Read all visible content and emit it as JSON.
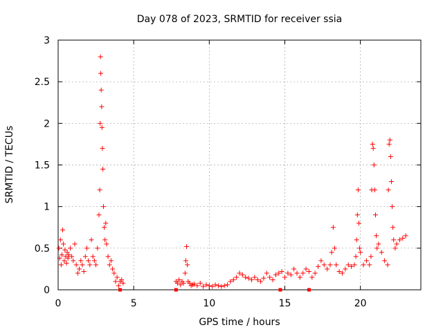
{
  "chart_data": {
    "type": "scatter",
    "title": "Day 078 of 2023, SRMTID for receiver ssia",
    "xlabel": "GPS time / hours",
    "ylabel": "SRMTID / TECUs",
    "xlim": [
      0,
      24
    ],
    "ylim": [
      0,
      3
    ],
    "xticks": [
      0,
      5,
      10,
      15,
      20
    ],
    "yticks": [
      0,
      0.5,
      1,
      1.5,
      2,
      2.5,
      3
    ],
    "ytick_labels": [
      "0",
      "0.5",
      "1",
      "1.5",
      "2",
      "2.5",
      "3"
    ],
    "grid": true,
    "marker": "+",
    "color": "#ff0000",
    "series": [
      {
        "name": "SRMTID",
        "x": [
          0.05,
          0.1,
          0.15,
          0.2,
          0.25,
          0.3,
          0.35,
          0.4,
          0.45,
          0.5,
          0.55,
          0.6,
          0.65,
          0.7,
          0.8,
          0.9,
          1.0,
          1.1,
          1.2,
          1.3,
          1.4,
          1.5,
          1.6,
          1.7,
          1.8,
          1.9,
          2.0,
          2.1,
          2.2,
          2.3,
          2.4,
          2.5,
          2.6,
          2.7,
          2.75,
          2.78,
          2.8,
          2.82,
          2.85,
          2.88,
          2.9,
          2.93,
          2.96,
          3.0,
          3.05,
          3.1,
          3.15,
          3.2,
          3.3,
          3.4,
          3.5,
          3.6,
          3.7,
          3.8,
          3.9,
          4.0,
          4.1,
          4.2,
          4.3,
          7.8,
          7.9,
          8.0,
          8.1,
          8.2,
          8.3,
          8.4,
          8.45,
          8.5,
          8.55,
          8.6,
          8.7,
          8.8,
          8.9,
          9.0,
          9.2,
          9.4,
          9.6,
          9.8,
          10.0,
          10.2,
          10.4,
          10.6,
          10.8,
          11.0,
          11.2,
          11.4,
          11.6,
          11.8,
          12.0,
          12.2,
          12.4,
          12.6,
          12.8,
          13.0,
          13.2,
          13.4,
          13.6,
          13.8,
          14.0,
          14.2,
          14.4,
          14.6,
          14.8,
          15.0,
          15.2,
          15.4,
          15.6,
          15.8,
          16.0,
          16.2,
          16.4,
          16.6,
          16.8,
          17.0,
          17.2,
          17.4,
          17.6,
          17.8,
          18.0,
          18.1,
          18.2,
          18.3,
          18.4,
          18.6,
          18.8,
          19.0,
          19.2,
          19.4,
          19.6,
          19.7,
          19.75,
          19.8,
          19.85,
          19.9,
          19.95,
          20.0,
          20.2,
          20.4,
          20.6,
          20.7,
          20.75,
          20.8,
          20.85,
          20.9,
          20.95,
          21.0,
          21.05,
          21.1,
          21.2,
          21.4,
          21.6,
          21.8,
          21.85,
          21.9,
          21.95,
          22.0,
          22.05,
          22.1,
          22.15,
          22.2,
          22.3,
          22.4,
          22.6,
          22.8,
          23.0
        ],
        "y": [
          0.5,
          0.38,
          0.6,
          0.3,
          0.42,
          0.72,
          0.55,
          0.35,
          0.48,
          0.4,
          0.32,
          0.45,
          0.38,
          0.42,
          0.5,
          0.4,
          0.35,
          0.55,
          0.3,
          0.2,
          0.25,
          0.35,
          0.3,
          0.22,
          0.4,
          0.5,
          0.35,
          0.3,
          0.6,
          0.4,
          0.35,
          0.3,
          0.5,
          0.9,
          1.2,
          2.0,
          2.8,
          2.6,
          2.4,
          2.2,
          1.95,
          1.7,
          1.45,
          1.0,
          0.75,
          0.6,
          0.8,
          0.55,
          0.4,
          0.3,
          0.35,
          0.25,
          0.2,
          0.1,
          0.15,
          0.05,
          0.1,
          0.12,
          0.08,
          0.1,
          0.08,
          0.12,
          0.06,
          0.1,
          0.08,
          0.2,
          0.35,
          0.52,
          0.3,
          0.1,
          0.08,
          0.05,
          0.06,
          0.07,
          0.05,
          0.08,
          0.04,
          0.06,
          0.05,
          0.04,
          0.06,
          0.05,
          0.04,
          0.05,
          0.06,
          0.1,
          0.12,
          0.15,
          0.2,
          0.18,
          0.15,
          0.14,
          0.12,
          0.15,
          0.12,
          0.1,
          0.14,
          0.2,
          0.15,
          0.12,
          0.18,
          0.2,
          0.22,
          0.15,
          0.2,
          0.18,
          0.25,
          0.2,
          0.15,
          0.2,
          0.25,
          0.22,
          0.15,
          0.2,
          0.28,
          0.35,
          0.3,
          0.25,
          0.3,
          0.45,
          0.75,
          0.5,
          0.3,
          0.22,
          0.2,
          0.25,
          0.3,
          0.28,
          0.3,
          0.4,
          0.6,
          0.9,
          1.2,
          0.8,
          0.5,
          0.45,
          0.3,
          0.35,
          0.3,
          0.4,
          1.2,
          1.75,
          1.7,
          1.5,
          1.2,
          0.9,
          0.65,
          0.5,
          0.55,
          0.45,
          0.35,
          0.3,
          1.2,
          1.75,
          1.8,
          1.6,
          1.3,
          1.0,
          0.75,
          0.6,
          0.5,
          0.55,
          0.6,
          0.62,
          0.65
        ]
      },
      {
        "name": "zero-markers",
        "marker": "square",
        "x": [
          4.1,
          7.8,
          14.7,
          16.6
        ],
        "y": [
          0,
          0,
          0,
          0
        ]
      }
    ]
  }
}
